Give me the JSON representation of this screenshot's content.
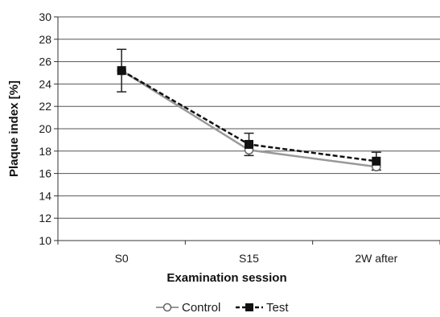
{
  "chart_data": {
    "type": "line",
    "xlabel": "Examination session",
    "ylabel": "Plaque index [%]",
    "categories": [
      "S0",
      "S15",
      "2W after"
    ],
    "ylim": [
      10,
      30
    ],
    "ytick_step": 2,
    "grid": true,
    "legend_position": "bottom",
    "series": [
      {
        "name": "Control",
        "values": [
          25.2,
          18.1,
          16.6
        ],
        "marker": "open-circle",
        "line_style": "solid",
        "color": "#999999"
      },
      {
        "name": "Test",
        "values": [
          25.2,
          18.6,
          17.1
        ],
        "marker": "filled-square",
        "line_style": "dashed",
        "color": "#111111",
        "error": [
          1.9,
          1.0,
          0.8
        ]
      }
    ]
  }
}
